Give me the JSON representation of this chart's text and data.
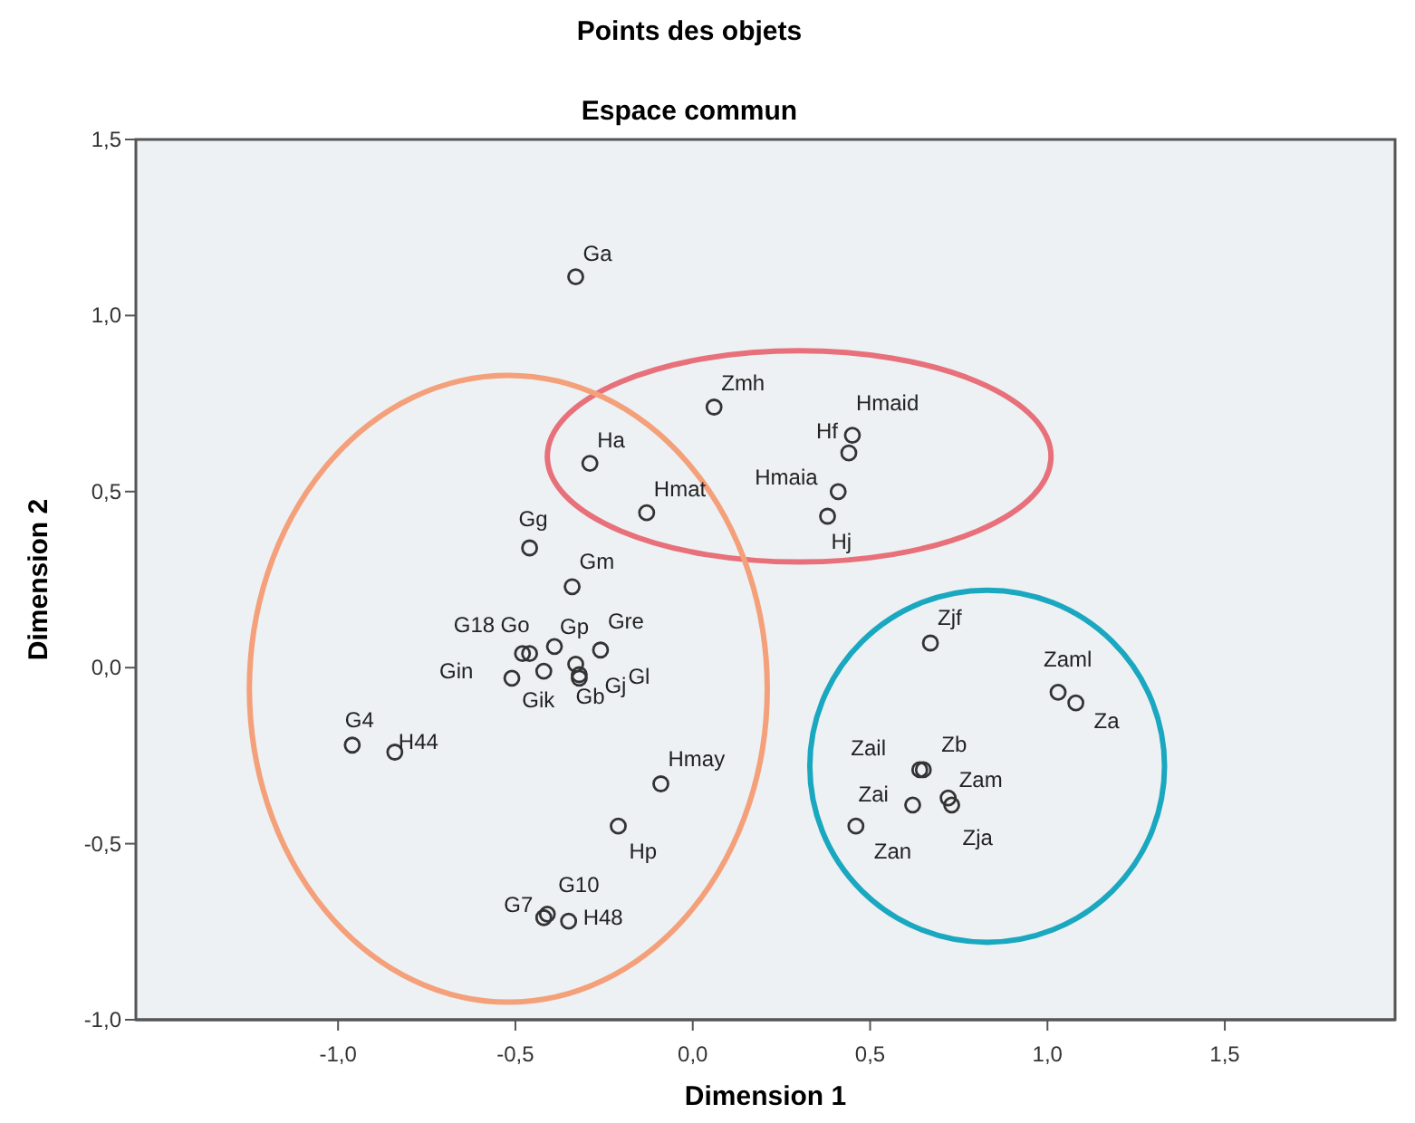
{
  "chart_data": {
    "type": "scatter",
    "title": "Points des objets",
    "subtitle": "Espace commun",
    "xlabel": "Dimension 1",
    "ylabel": "Dimension 2",
    "xlim": [
      -1.57,
      1.98
    ],
    "ylim": [
      -1,
      1.5
    ],
    "xticks": [
      {
        "value": -1,
        "label": "-1,0"
      },
      {
        "value": -0.5,
        "label": "-0,5"
      },
      {
        "value": 0,
        "label": "0,0"
      },
      {
        "value": 0.5,
        "label": "0,5"
      },
      {
        "value": 1,
        "label": "1,0"
      },
      {
        "value": 1.5,
        "label": "1,5"
      }
    ],
    "yticks": [
      {
        "value": -1,
        "label": "-1,0"
      },
      {
        "value": -0.5,
        "label": "-0,5"
      },
      {
        "value": 0,
        "label": "0,0"
      },
      {
        "value": 0.5,
        "label": "0,5"
      },
      {
        "value": 1,
        "label": "1,0"
      },
      {
        "value": 1.5,
        "label": "1,5"
      }
    ],
    "grid": false,
    "marker": "circle",
    "series": [
      {
        "color": "#333333",
        "x": [
          -0.33,
          0.06,
          -0.29,
          -0.13,
          0.45,
          0.44,
          0.41,
          0.38,
          -0.46,
          -0.34,
          -0.51,
          -0.48,
          -0.46,
          -0.39,
          -0.26,
          -0.42,
          -0.33,
          -0.32,
          -0.32,
          -0.96,
          -0.84,
          -0.09,
          -0.21,
          -0.42,
          -0.41,
          -0.35,
          0.67,
          1.03,
          1.08,
          0.64,
          0.65,
          0.62,
          0.72,
          0.73,
          0.46
        ],
        "values": [
          1.11,
          0.74,
          0.58,
          0.44,
          0.66,
          0.61,
          0.5,
          0.43,
          0.34,
          0.23,
          -0.03,
          0.04,
          0.04,
          0.06,
          0.05,
          -0.01,
          0.01,
          -0.02,
          -0.03,
          -0.22,
          -0.24,
          -0.33,
          -0.45,
          -0.71,
          -0.7,
          -0.72,
          0.07,
          -0.07,
          -0.1,
          -0.29,
          -0.29,
          -0.39,
          -0.37,
          -0.39,
          -0.45
        ]
      }
    ],
    "annotations": [
      {
        "text": "Ga",
        "x": -0.33,
        "y": 1.11
      },
      {
        "text": "Zmh",
        "x": 0.06,
        "y": 0.74
      },
      {
        "text": "Ha",
        "x": -0.29,
        "y": 0.58
      },
      {
        "text": "Hmat",
        "x": -0.13,
        "y": 0.44
      },
      {
        "text": "Hmaid",
        "x": 0.45,
        "y": 0.66
      },
      {
        "text": "Hf",
        "x": 0.44,
        "y": 0.61
      },
      {
        "text": "Hmaia",
        "x": 0.41,
        "y": 0.5
      },
      {
        "text": "Hj",
        "x": 0.38,
        "y": 0.43
      },
      {
        "text": "Gg",
        "x": -0.46,
        "y": 0.34
      },
      {
        "text": "Gm",
        "x": -0.34,
        "y": 0.23
      },
      {
        "text": "Gin",
        "x": -0.51,
        "y": -0.03
      },
      {
        "text": "G18",
        "x": -0.48,
        "y": 0.04
      },
      {
        "text": "Go",
        "x": -0.46,
        "y": 0.04
      },
      {
        "text": "Gp",
        "x": -0.39,
        "y": 0.06
      },
      {
        "text": "Gre",
        "x": -0.26,
        "y": 0.05
      },
      {
        "text": "Gik",
        "x": -0.42,
        "y": -0.01
      },
      {
        "text": "Gb",
        "x": -0.33,
        "y": 0.01
      },
      {
        "text": "Gj",
        "x": -0.32,
        "y": -0.02
      },
      {
        "text": "Gl",
        "x": -0.32,
        "y": -0.03
      },
      {
        "text": "G4",
        "x": -0.96,
        "y": -0.22
      },
      {
        "text": "H44",
        "x": -0.84,
        "y": -0.24
      },
      {
        "text": "Hmay",
        "x": -0.09,
        "y": -0.33
      },
      {
        "text": "Hp",
        "x": -0.21,
        "y": -0.45
      },
      {
        "text": "G7",
        "x": -0.42,
        "y": -0.71
      },
      {
        "text": "G10",
        "x": -0.41,
        "y": -0.7
      },
      {
        "text": "H48",
        "x": -0.35,
        "y": -0.72
      },
      {
        "text": "Zjf",
        "x": 0.67,
        "y": 0.07
      },
      {
        "text": "Zaml",
        "x": 1.03,
        "y": -0.07
      },
      {
        "text": "Za",
        "x": 1.08,
        "y": -0.1
      },
      {
        "text": "Zail",
        "x": 0.64,
        "y": -0.29
      },
      {
        "text": "Zb",
        "x": 0.65,
        "y": -0.29
      },
      {
        "text": "Zai",
        "x": 0.62,
        "y": -0.39
      },
      {
        "text": "Zam",
        "x": 0.72,
        "y": -0.37
      },
      {
        "text": "Zja",
        "x": 0.73,
        "y": -0.39
      },
      {
        "text": "Zan",
        "x": 0.46,
        "y": -0.45
      }
    ]
  }
}
